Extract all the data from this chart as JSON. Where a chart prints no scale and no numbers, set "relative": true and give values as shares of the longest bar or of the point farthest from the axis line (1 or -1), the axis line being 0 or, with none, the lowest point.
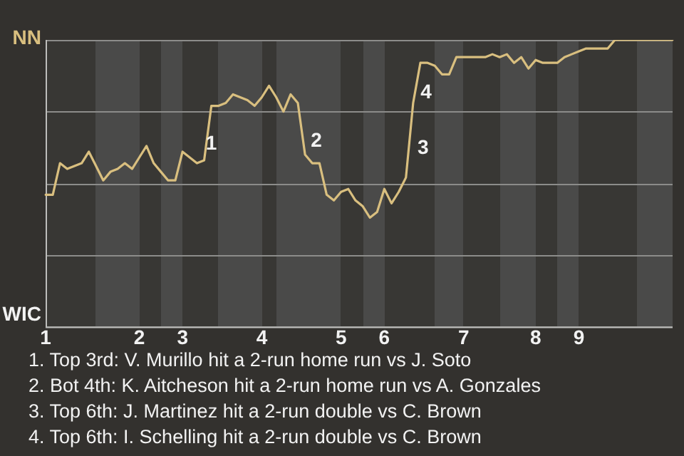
{
  "chart_data": {
    "type": "line",
    "categories": [
      "1",
      null,
      null,
      null,
      null,
      null,
      null,
      null,
      null,
      null,
      null,
      null,
      null,
      "2",
      null,
      null,
      null,
      null,
      null,
      "3",
      null,
      null,
      null,
      null,
      null,
      null,
      null,
      null,
      null,
      null,
      "4",
      null,
      null,
      null,
      null,
      null,
      null,
      null,
      null,
      null,
      null,
      "5",
      null,
      null,
      null,
      null,
      null,
      "6",
      null,
      null,
      null,
      null,
      null,
      null,
      null,
      null,
      null,
      null,
      "7",
      null,
      null,
      null,
      null,
      null,
      null,
      null,
      null,
      null,
      "8",
      null,
      null,
      null,
      null,
      null,
      "9",
      null,
      null,
      null,
      null,
      null,
      null,
      null,
      null,
      null,
      null,
      null,
      null,
      null
    ],
    "relative": true,
    "series": [
      {
        "color": "#d9bf7f",
        "values": [
          0.46,
          0.46,
          0.57,
          0.55,
          0.56,
          0.57,
          0.61,
          0.56,
          0.51,
          0.54,
          0.55,
          0.57,
          0.55,
          0.59,
          0.63,
          0.57,
          0.54,
          0.51,
          0.51,
          0.61,
          0.59,
          0.57,
          0.58,
          0.77,
          0.77,
          0.78,
          0.81,
          0.8,
          0.79,
          0.77,
          0.8,
          0.84,
          0.8,
          0.75,
          0.81,
          0.78,
          0.6,
          0.57,
          0.57,
          0.46,
          0.44,
          0.47,
          0.48,
          0.44,
          0.42,
          0.38,
          0.4,
          0.48,
          0.43,
          0.47,
          0.52,
          0.78,
          0.92,
          0.92,
          0.91,
          0.88,
          0.88,
          0.94,
          0.94,
          0.94,
          0.94,
          0.94,
          0.95,
          0.94,
          0.95,
          0.92,
          0.94,
          0.9,
          0.93,
          0.92,
          0.92,
          0.92,
          0.94,
          0.95,
          0.96,
          0.97,
          0.97,
          0.97,
          0.97,
          1,
          1,
          1,
          1,
          1,
          1,
          1,
          1,
          1
        ],
        "colors": [
          "#d9bf7f",
          "#d9bf7f",
          "#d9bf7f",
          "#d9bf7f",
          "#d9bf7f",
          "#d9bf7f",
          "#d9bf7f",
          "#f2f2f2",
          "#f2f2f2",
          "#f2f2f2",
          "#f2f2f2",
          "#f2f2f2",
          "#f2f2f2",
          "#d9bf7f",
          "#d9bf7f",
          "#d9bf7f",
          "#f2f2f2",
          "#f2f2f2",
          "#f2f2f2",
          "#d9bf7f",
          "#d9bf7f",
          "#d9bf7f",
          "#d9bf7f",
          "#d9bf7f",
          "#f2f2f2",
          "#f2f2f2",
          "#f2f2f2",
          "#f2f2f2",
          "#f2f2f2",
          "#f2f2f2",
          "#d9bf7f",
          "#d9bf7f",
          "#f2f2f2",
          "#f2f2f2",
          "#f2f2f2",
          "#f2f2f2",
          "#f2f2f2",
          "#f2f2f2",
          "#f2f2f2",
          "#f2f2f2",
          "#f2f2f2",
          "#d9bf7f",
          "#d9bf7f",
          "#d9bf7f",
          "#f2f2f2",
          "#f2f2f2",
          "#f2f2f2",
          "#d9bf7f",
          "#d9bf7f",
          "#d9bf7f",
          "#d9bf7f",
          "#d9bf7f",
          "#d9bf7f",
          "#d9bf7f",
          "#f2f2f2",
          "#f2f2f2",
          "#f2f2f2",
          "#f2f2f2",
          "#d9bf7f",
          "#d9bf7f",
          "#d9bf7f",
          "#d9bf7f",
          "#d9bf7f",
          "#f2f2f2",
          "#f2f2f2",
          "#f2f2f2",
          "#f2f2f2",
          "#f2f2f2",
          "#d9bf7f",
          "#d9bf7f",
          "#d9bf7f",
          "#f2f2f2",
          "#f2f2f2",
          "#f2f2f2",
          "#d9bf7f",
          "#d9bf7f",
          "#d9bf7f",
          "#d9bf7f",
          "#d9bf7f",
          "#d9bf7f",
          "#d9bf7f",
          "#d9bf7f",
          "#f2f2f2",
          "#f2f2f2",
          "#f2f2f2",
          "#f2f2f2",
          "#f2f2f2",
          "#f2f2f2"
        ]
      }
    ],
    "annotations": [
      "NN",
      "WIC",
      "1",
      "2",
      "3",
      "4",
      "1. Top 3rd: V. Murillo hit a 2-run home run vs J. Soto",
      "2. Bot 4th: K. Aitcheson hit a 2-run home run vs A. Gonzales",
      "3. Top 6th: J. Martinez hit a 2-run double vs C. Brown",
      "4. Top 6th: I. Schelling hit a 2-run double vs C. Brown"
    ],
    "grid": "y",
    "legend": false,
    "marker": "none"
  }
}
